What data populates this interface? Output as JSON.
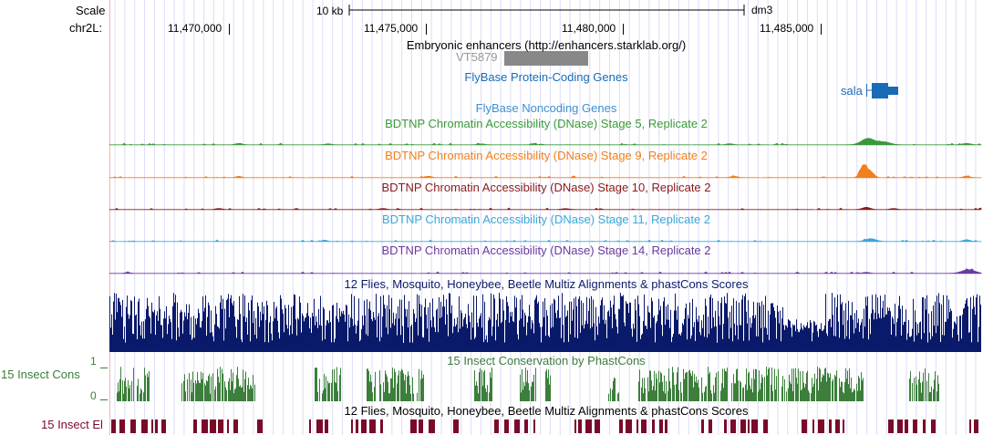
{
  "ruler": {
    "scale_label": "Scale",
    "chrom_label": "chr2L:",
    "scale_bar_label": "10 kb",
    "assembly": "dm3",
    "ticks": [
      "11,470,000",
      "11,475,000",
      "11,480,000",
      "11,485,000"
    ]
  },
  "tracks": {
    "enhancers": {
      "title": "Embryonic enhancers (http://enhancers.starklab.org/)",
      "feature_label": "VT5879",
      "color": "#888888"
    },
    "protein_coding": {
      "title": "FlyBase Protein-Coding Genes",
      "gene_label": "sala",
      "color": "#1a6bb7"
    },
    "noncoding": {
      "title": "FlyBase Noncoding Genes",
      "color": "#3e8fd0"
    },
    "dnase_stage5": {
      "title": "BDTNP Chromatin Accessibility (DNase) Stage 5, Replicate 2",
      "color": "#3a9a3a"
    },
    "dnase_stage9": {
      "title": "BDTNP Chromatin Accessibility (DNase) Stage 9, Replicate 2",
      "color": "#f07f1c"
    },
    "dnase_stage10": {
      "title": "BDTNP Chromatin Accessibility (DNase) Stage 10, Replicate 2",
      "color": "#8b1a1a"
    },
    "dnase_stage11": {
      "title": "BDTNP Chromatin Accessibility (DNase) Stage 11, Replicate 2",
      "color": "#3aa7d8"
    },
    "dnase_stage14": {
      "title": "BDTNP Chromatin Accessibility (DNase) Stage 14, Replicate 2",
      "color": "#6a3aa0"
    },
    "multiz": {
      "title": "12 Flies, Mosquito, Honeybee, Beetle Multiz Alignments & phastCons Scores",
      "color": "#0a1a6b"
    },
    "phastcons": {
      "title": "15 Insect Conservation by PhastCons",
      "side_label": "15 Insect Cons",
      "axis_max": "1",
      "axis_min": "0",
      "color": "#3b7f3b"
    },
    "multiz2": {
      "title": "12 Flies, Mosquito, Honeybee, Beetle Multiz Alignments & phastCons Scores"
    },
    "elements": {
      "side_label": "15 Insect El",
      "color": "#7a0a2a"
    }
  }
}
